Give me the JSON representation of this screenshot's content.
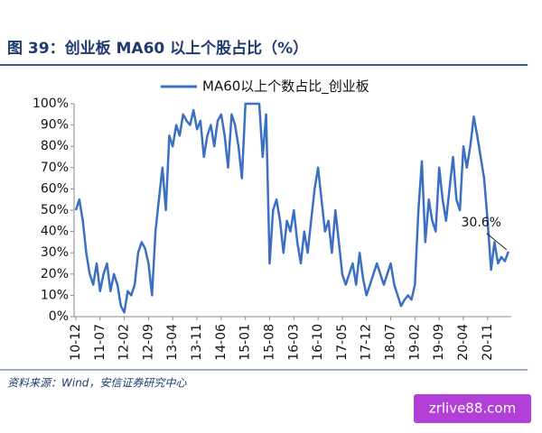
{
  "chart_data": {
    "type": "line",
    "title": "图 39：创业板 MA60 以上个股占比（%）",
    "source": "资料来源：Wind，安信证券研究中心",
    "watermark": "zrlive88.com",
    "categories": [
      "10-12",
      null,
      null,
      null,
      null,
      null,
      null,
      "11-07",
      null,
      null,
      null,
      null,
      null,
      null,
      "12-02",
      null,
      null,
      null,
      null,
      null,
      null,
      "12-09",
      null,
      null,
      null,
      null,
      null,
      null,
      "13-04",
      null,
      null,
      null,
      null,
      null,
      null,
      "13-11",
      null,
      null,
      null,
      null,
      null,
      null,
      "14-06",
      null,
      null,
      null,
      null,
      null,
      null,
      "15-01",
      null,
      null,
      null,
      null,
      null,
      null,
      "15-08",
      null,
      null,
      null,
      null,
      null,
      null,
      "16-03",
      null,
      null,
      null,
      null,
      null,
      null,
      "16-10",
      null,
      null,
      null,
      null,
      null,
      null,
      "17-05",
      null,
      null,
      null,
      null,
      null,
      null,
      "17-12",
      null,
      null,
      null,
      null,
      null,
      null,
      "18-07",
      null,
      null,
      null,
      null,
      null,
      null,
      "19-02",
      null,
      null,
      null,
      null,
      null,
      null,
      "19-09",
      null,
      null,
      null,
      null,
      null,
      null,
      "20-04",
      null,
      null,
      null,
      null,
      null,
      null,
      "20-11",
      null,
      null,
      null,
      null,
      null,
      null
    ],
    "series": [
      {
        "name": "MA60以上个数占比_创业板",
        "color": "#3a6fc4",
        "values": [
          50,
          55,
          45,
          30,
          20,
          15,
          25,
          12,
          20,
          25,
          12,
          20,
          15,
          5,
          2,
          12,
          10,
          15,
          30,
          35,
          32,
          25,
          10,
          40,
          55,
          70,
          50,
          85,
          80,
          90,
          85,
          95,
          92,
          90,
          97,
          88,
          92,
          75,
          85,
          90,
          80,
          92,
          95,
          85,
          70,
          95,
          90,
          80,
          65,
          100,
          100,
          100,
          100,
          100,
          75,
          95,
          25,
          50,
          55,
          45,
          30,
          45,
          40,
          50,
          35,
          25,
          40,
          30,
          45,
          60,
          70,
          55,
          40,
          45,
          30,
          50,
          35,
          20,
          15,
          20,
          25,
          15,
          30,
          18,
          10,
          15,
          20,
          25,
          20,
          15,
          20,
          25,
          15,
          10,
          5,
          8,
          10,
          8,
          15,
          50,
          73,
          35,
          55,
          45,
          40,
          70,
          55,
          45,
          60,
          75,
          55,
          50,
          80,
          70,
          80,
          94,
          85,
          75,
          65,
          45,
          22,
          35,
          25,
          28,
          26,
          30.6
        ]
      }
    ],
    "annotation": {
      "text": "30.6%",
      "index": 125
    },
    "ylim": [
      0,
      100
    ],
    "yticks": [
      {
        "value": 0,
        "label": "0%"
      },
      {
        "value": 10,
        "label": "10%"
      },
      {
        "value": 20,
        "label": "20%"
      },
      {
        "value": 30,
        "label": "30%"
      },
      {
        "value": 40,
        "label": "40%"
      },
      {
        "value": 50,
        "label": "50%"
      },
      {
        "value": 60,
        "label": "60%"
      },
      {
        "value": 70,
        "label": "70%"
      },
      {
        "value": 80,
        "label": "80%"
      },
      {
        "value": 90,
        "label": "90%"
      },
      {
        "value": 100,
        "label": "100%"
      }
    ],
    "legend": "top"
  }
}
